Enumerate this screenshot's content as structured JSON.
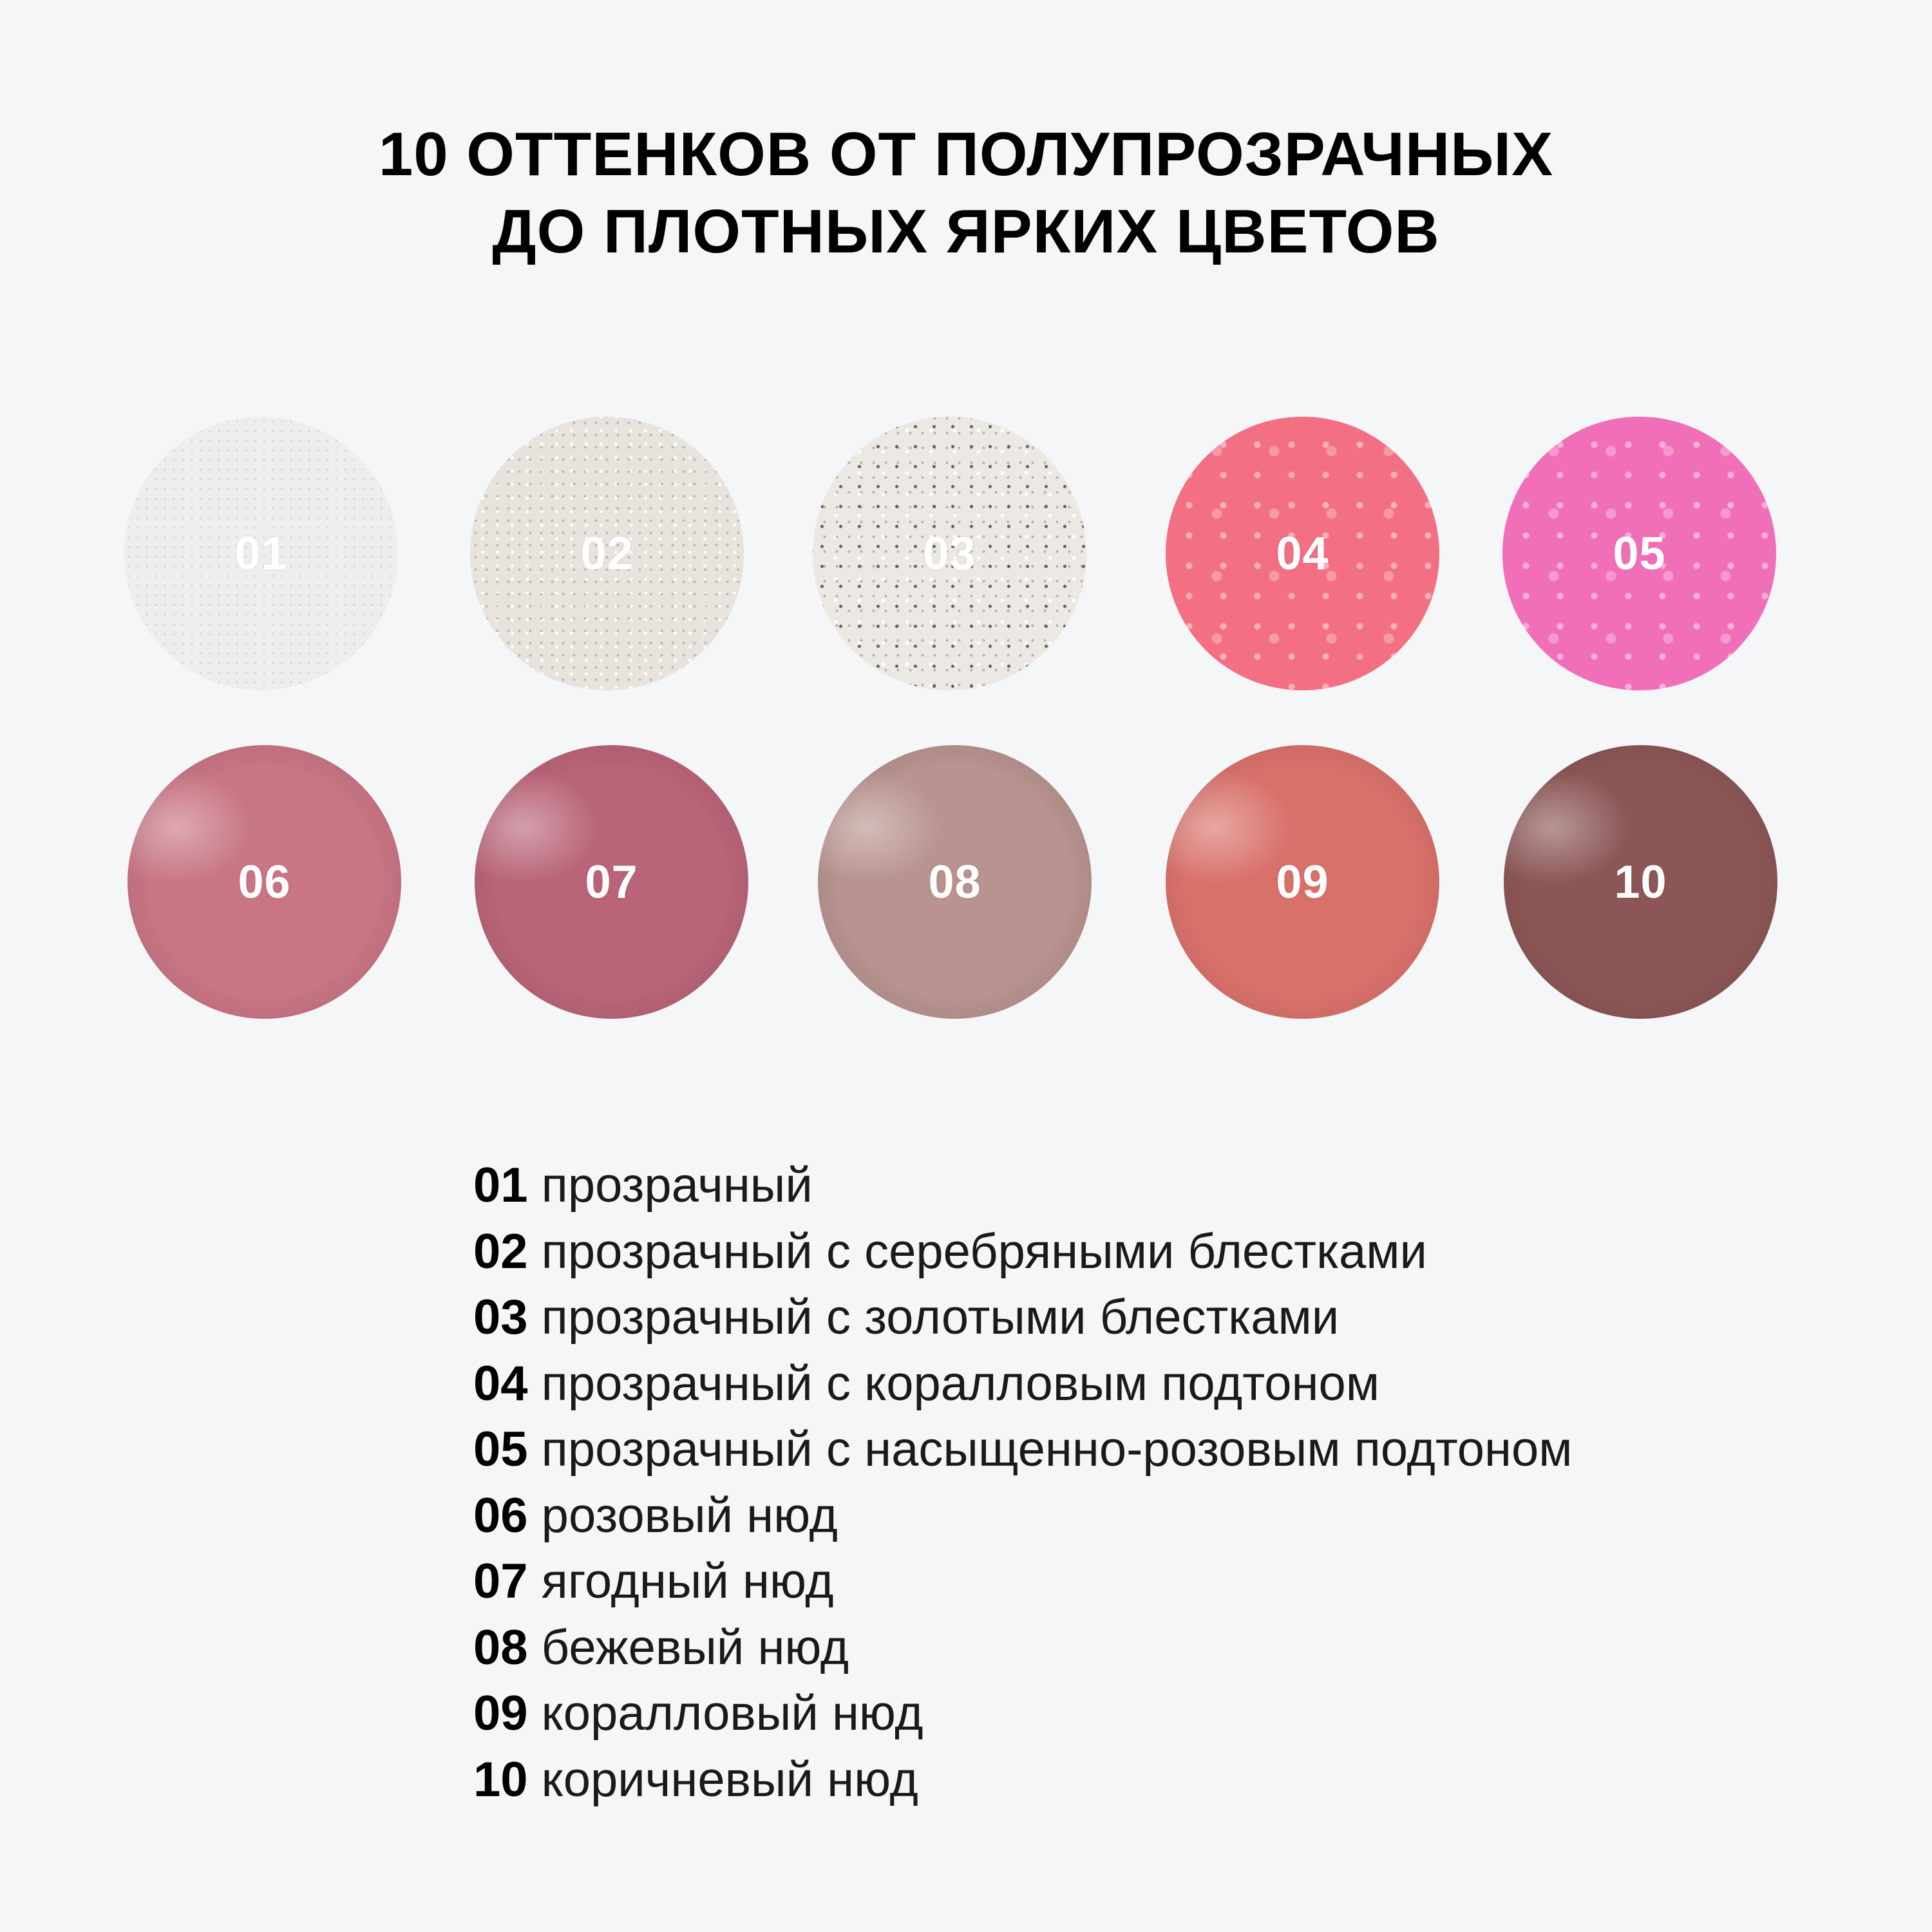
{
  "title": {
    "line1": "10 ОТТЕНКОВ ОТ ПОЛУПРОЗРАЧНЫХ",
    "line2": "ДО ПЛОТНЫХ ЯРКИХ ЦВЕТОВ"
  },
  "swatches": [
    {
      "code": "01",
      "color": "#eeeeee",
      "texture": "sparkle-fine"
    },
    {
      "code": "02",
      "color": "#e8e3dd",
      "texture": "sparkle-silver"
    },
    {
      "code": "03",
      "color": "#ece8e3",
      "texture": "sparkle-dark"
    },
    {
      "code": "04",
      "color": "#f36f83",
      "texture": "bubbles"
    },
    {
      "code": "05",
      "color": "#f16fb8",
      "texture": "bubbles"
    },
    {
      "code": "06",
      "color": "#c87584",
      "texture": "gloss"
    },
    {
      "code": "07",
      "color": "#b96478",
      "texture": "gloss"
    },
    {
      "code": "08",
      "color": "#b8938f",
      "texture": "gloss"
    },
    {
      "code": "09",
      "color": "#d9716b",
      "texture": "gloss"
    },
    {
      "code": "10",
      "color": "#8c5656",
      "texture": "gloss"
    }
  ],
  "legend": [
    {
      "num": "01",
      "desc": "прозрачный"
    },
    {
      "num": "02",
      "desc": "прозрачный с серебряными блестками"
    },
    {
      "num": "03",
      "desc": "прозрачный с золотыми блестками"
    },
    {
      "num": "04",
      "desc": "прозрачный с коралловым подтоном"
    },
    {
      "num": "05",
      "desc": "прозрачный с насыщенно-розовым подтоном"
    },
    {
      "num": "06",
      "desc": "розовый нюд"
    },
    {
      "num": "07",
      "desc": "ягодный нюд"
    },
    {
      "num": "08",
      "desc": "бежевый нюд"
    },
    {
      "num": "09",
      "desc": "коралловый нюд"
    },
    {
      "num": "10",
      "desc": "коричневый нюд"
    }
  ]
}
